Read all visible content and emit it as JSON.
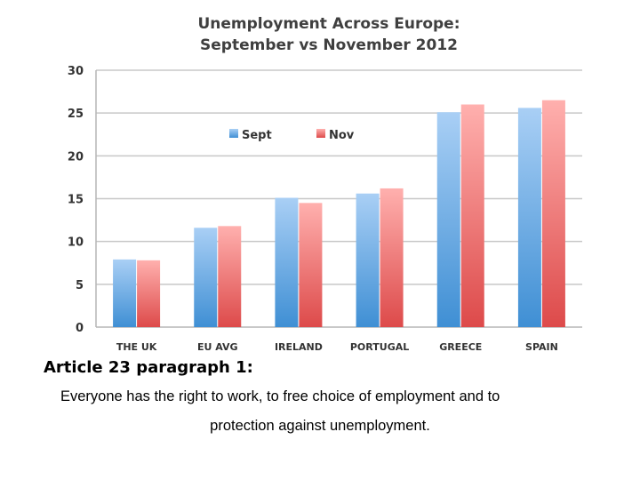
{
  "chart_data": {
    "type": "bar",
    "title": [
      "Unemployment Across Europe:",
      "September vs November 2012"
    ],
    "categories": [
      "THE UK",
      "EU AVG",
      "IRELAND",
      "PORTUGAL",
      "GREECE",
      "SPAIN"
    ],
    "series": [
      {
        "name": "Sept",
        "values": [
          7.9,
          11.6,
          15.1,
          15.6,
          25.1,
          25.6
        ],
        "color_top": "#a9cff5",
        "color_bottom": "#3f8fd4"
      },
      {
        "name": "Nov",
        "values": [
          7.8,
          11.8,
          14.5,
          16.2,
          26.0,
          26.5
        ],
        "color_top": "#ffb0ae",
        "color_bottom": "#dd4a4a"
      }
    ],
    "yticks": [
      "0",
      "5",
      "10",
      "15",
      "20",
      "25",
      "30"
    ],
    "ylim": [
      0,
      30
    ],
    "grid": true,
    "legend_position": "top-center",
    "xlabel": "",
    "ylabel": ""
  },
  "article": {
    "heading": "Article 23 paragraph 1:",
    "line1": "Everyone has the right to work, to free choice of employment and to",
    "line2": "protection against unemployment."
  }
}
